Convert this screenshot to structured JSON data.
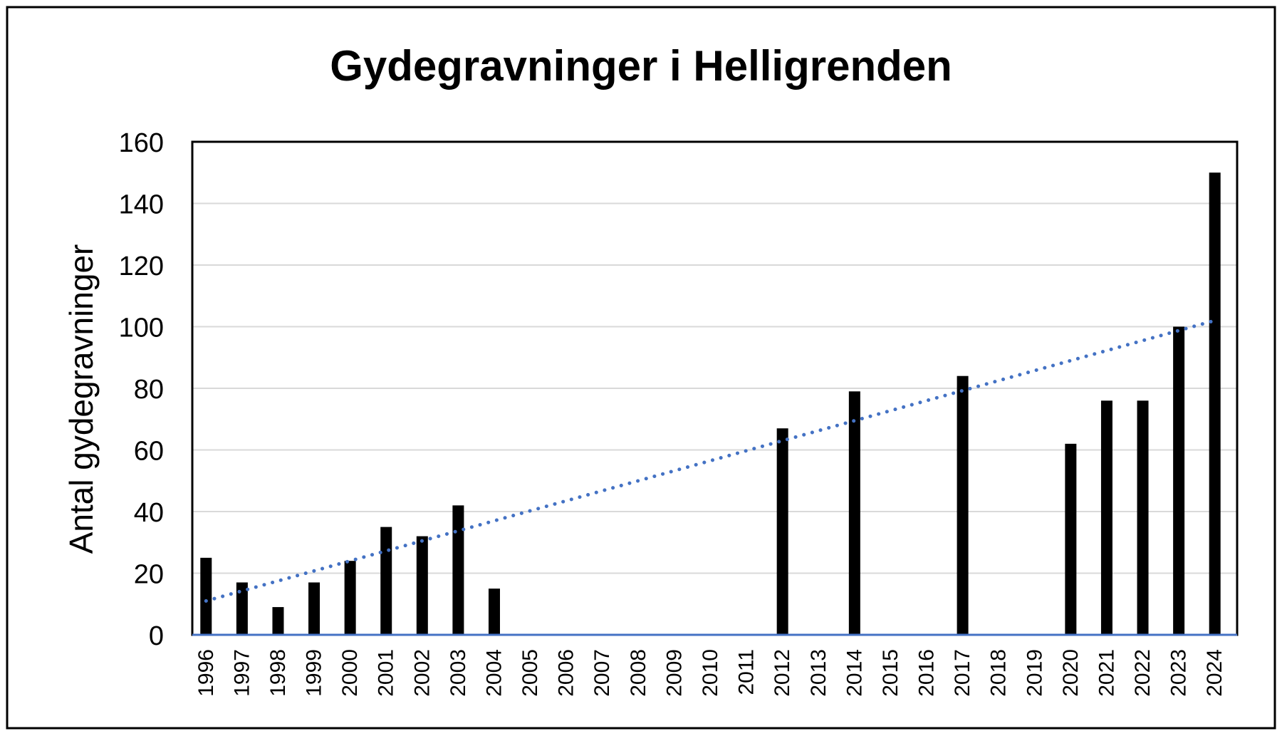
{
  "chart_data": {
    "type": "bar",
    "title": "Gydegravninger i Helligrenden",
    "xlabel": "",
    "ylabel": "Antal gydegravninger",
    "ylim": [
      0,
      160
    ],
    "yticks": [
      "0",
      "20",
      "40",
      "60",
      "80",
      "100",
      "120",
      "140",
      "160"
    ],
    "grid": true,
    "legend": "none",
    "categories": [
      "1996",
      "1997",
      "1998",
      "1999",
      "2000",
      "2001",
      "2002",
      "2003",
      "2004",
      "2005",
      "2006",
      "2007",
      "2008",
      "2009",
      "2010",
      "2011",
      "2012",
      "2013",
      "2014",
      "2015",
      "2016",
      "2017",
      "2018",
      "2019",
      "2020",
      "2021",
      "2022",
      "2023",
      "2024"
    ],
    "values": [
      25,
      17,
      9,
      17,
      24,
      35,
      32,
      42,
      15,
      null,
      null,
      null,
      null,
      null,
      null,
      null,
      67,
      null,
      79,
      null,
      null,
      84,
      null,
      null,
      62,
      76,
      76,
      100,
      150
    ],
    "trendline": {
      "style": "dotted",
      "start": 11,
      "end": 102
    },
    "colors": {
      "bars": "#000000",
      "trendline": "#4472C4",
      "grid": "#d9d9d9",
      "axis": "#4472C4"
    }
  }
}
